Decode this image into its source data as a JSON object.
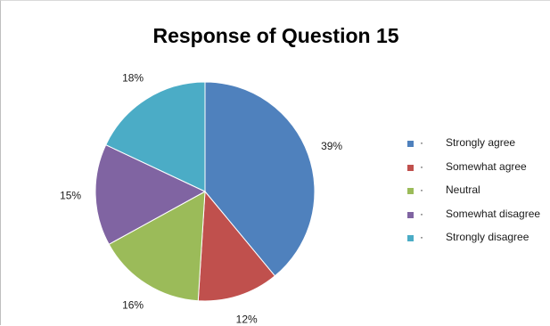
{
  "chart_data": {
    "type": "pie",
    "title": "Response of Question 15",
    "categories": [
      "Strongly agree",
      "Somewhat agree",
      "Neutral",
      "Somewhat disagree",
      "Strongly disagree"
    ],
    "values": [
      39,
      12,
      16,
      15,
      18
    ],
    "value_labels": [
      "39%",
      "12%",
      "16%",
      "15%",
      "18%"
    ],
    "colors": [
      "#4F81BD",
      "#C0504D",
      "#9BBB59",
      "#8064A2",
      "#4BACC6"
    ],
    "legend_position": "right",
    "legend_marker": "·"
  }
}
